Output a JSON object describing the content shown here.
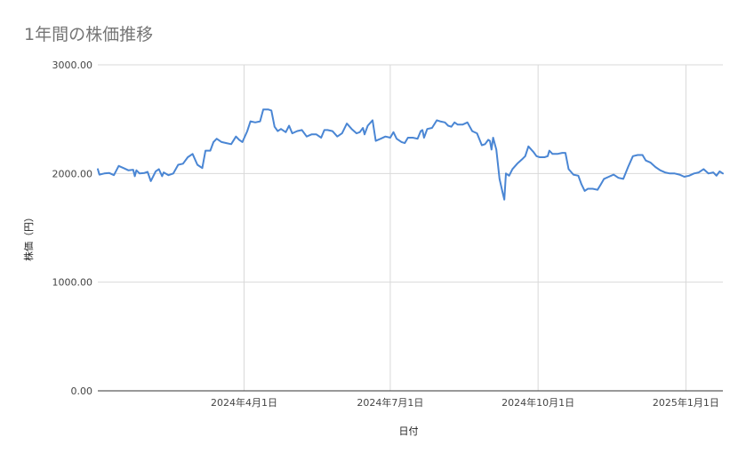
{
  "chart_data": {
    "type": "line",
    "title": "1年間の株価推移",
    "xlabel": "日付",
    "ylabel": "株価（円）",
    "ylim": [
      0,
      3000
    ],
    "yticks": [
      {
        "value": 0,
        "label": "0.00"
      },
      {
        "value": 1000,
        "label": "1000.00"
      },
      {
        "value": 2000,
        "label": "2000.00"
      },
      {
        "value": 3000,
        "label": "3000.00"
      }
    ],
    "xrange": [
      "2024-01-01",
      "2025-01-24"
    ],
    "xticks": [
      {
        "date": "2024-04-01",
        "label": "2024年4月1日"
      },
      {
        "date": "2024-07-01",
        "label": "2024年7月1日"
      },
      {
        "date": "2024-10-01",
        "label": "2024年10月1日"
      },
      {
        "date": "2025-01-01",
        "label": "2025年1月1日"
      }
    ],
    "grid": true,
    "legend": "none",
    "series": [
      {
        "color": "#4a86d4",
        "points": [
          [
            "2024-01-01",
            2040
          ],
          [
            "2024-01-02",
            1990
          ],
          [
            "2024-01-05",
            2000
          ],
          [
            "2024-01-08",
            2005
          ],
          [
            "2024-01-11",
            1985
          ],
          [
            "2024-01-14",
            2070
          ],
          [
            "2024-01-17",
            2050
          ],
          [
            "2024-01-20",
            2030
          ],
          [
            "2024-01-23",
            2035
          ],
          [
            "2024-01-24",
            1975
          ],
          [
            "2024-01-25",
            2030
          ],
          [
            "2024-01-27",
            2000
          ],
          [
            "2024-01-30",
            2005
          ],
          [
            "2024-02-01",
            2015
          ],
          [
            "2024-02-03",
            1930
          ],
          [
            "2024-02-06",
            2020
          ],
          [
            "2024-02-08",
            2040
          ],
          [
            "2024-02-10",
            1975
          ],
          [
            "2024-02-11",
            2010
          ],
          [
            "2024-02-14",
            1985
          ],
          [
            "2024-02-17",
            2000
          ],
          [
            "2024-02-20",
            2080
          ],
          [
            "2024-02-23",
            2090
          ],
          [
            "2024-02-26",
            2150
          ],
          [
            "2024-02-29",
            2180
          ],
          [
            "2024-03-03",
            2080
          ],
          [
            "2024-03-05",
            2060
          ],
          [
            "2024-03-06",
            2050
          ],
          [
            "2024-03-08",
            2210
          ],
          [
            "2024-03-11",
            2210
          ],
          [
            "2024-03-13",
            2290
          ],
          [
            "2024-03-15",
            2320
          ],
          [
            "2024-03-18",
            2290
          ],
          [
            "2024-03-21",
            2280
          ],
          [
            "2024-03-24",
            2270
          ],
          [
            "2024-03-27",
            2340
          ],
          [
            "2024-03-29",
            2310
          ],
          [
            "2024-03-31",
            2290
          ],
          [
            "2024-04-03",
            2390
          ],
          [
            "2024-04-05",
            2480
          ],
          [
            "2024-04-08",
            2470
          ],
          [
            "2024-04-11",
            2480
          ],
          [
            "2024-04-13",
            2590
          ],
          [
            "2024-04-16",
            2590
          ],
          [
            "2024-04-18",
            2580
          ],
          [
            "2024-04-20",
            2430
          ],
          [
            "2024-04-22",
            2390
          ],
          [
            "2024-04-24",
            2410
          ],
          [
            "2024-04-27",
            2380
          ],
          [
            "2024-04-29",
            2440
          ],
          [
            "2024-05-01",
            2370
          ],
          [
            "2024-05-04",
            2390
          ],
          [
            "2024-05-07",
            2400
          ],
          [
            "2024-05-10",
            2340
          ],
          [
            "2024-05-13",
            2360
          ],
          [
            "2024-05-16",
            2360
          ],
          [
            "2024-05-19",
            2330
          ],
          [
            "2024-05-21",
            2400
          ],
          [
            "2024-05-23",
            2400
          ],
          [
            "2024-05-26",
            2390
          ],
          [
            "2024-05-29",
            2340
          ],
          [
            "2024-06-01",
            2370
          ],
          [
            "2024-06-04",
            2460
          ],
          [
            "2024-06-07",
            2410
          ],
          [
            "2024-06-10",
            2370
          ],
          [
            "2024-06-12",
            2380
          ],
          [
            "2024-06-14",
            2420
          ],
          [
            "2024-06-15",
            2360
          ],
          [
            "2024-06-17",
            2440
          ],
          [
            "2024-06-20",
            2490
          ],
          [
            "2024-06-22",
            2300
          ],
          [
            "2024-06-25",
            2320
          ],
          [
            "2024-06-28",
            2340
          ],
          [
            "2024-07-01",
            2330
          ],
          [
            "2024-07-03",
            2380
          ],
          [
            "2024-07-05",
            2320
          ],
          [
            "2024-07-08",
            2290
          ],
          [
            "2024-07-10",
            2280
          ],
          [
            "2024-07-12",
            2330
          ],
          [
            "2024-07-15",
            2330
          ],
          [
            "2024-07-18",
            2320
          ],
          [
            "2024-07-20",
            2390
          ],
          [
            "2024-07-21",
            2400
          ],
          [
            "2024-07-22",
            2330
          ],
          [
            "2024-07-24",
            2410
          ],
          [
            "2024-07-27",
            2420
          ],
          [
            "2024-07-30",
            2490
          ],
          [
            "2024-08-01",
            2480
          ],
          [
            "2024-08-04",
            2470
          ],
          [
            "2024-08-06",
            2440
          ],
          [
            "2024-08-08",
            2430
          ],
          [
            "2024-08-10",
            2470
          ],
          [
            "2024-08-12",
            2450
          ],
          [
            "2024-08-15",
            2450
          ],
          [
            "2024-08-18",
            2470
          ],
          [
            "2024-08-21",
            2390
          ],
          [
            "2024-08-24",
            2370
          ],
          [
            "2024-08-27",
            2260
          ],
          [
            "2024-08-29",
            2270
          ],
          [
            "2024-08-31",
            2310
          ],
          [
            "2024-09-01",
            2300
          ],
          [
            "2024-09-02",
            2220
          ],
          [
            "2024-09-03",
            2330
          ],
          [
            "2024-09-05",
            2220
          ],
          [
            "2024-09-07",
            1950
          ],
          [
            "2024-09-09",
            1820
          ],
          [
            "2024-09-10",
            1760
          ],
          [
            "2024-09-11",
            2000
          ],
          [
            "2024-09-13",
            1980
          ],
          [
            "2024-09-15",
            2040
          ],
          [
            "2024-09-18",
            2090
          ],
          [
            "2024-09-21",
            2130
          ],
          [
            "2024-09-23",
            2160
          ],
          [
            "2024-09-25",
            2250
          ],
          [
            "2024-09-28",
            2200
          ],
          [
            "2024-09-30",
            2160
          ],
          [
            "2024-10-02",
            2150
          ],
          [
            "2024-10-05",
            2150
          ],
          [
            "2024-10-07",
            2160
          ],
          [
            "2024-10-08",
            2210
          ],
          [
            "2024-10-10",
            2180
          ],
          [
            "2024-10-13",
            2180
          ],
          [
            "2024-10-16",
            2190
          ],
          [
            "2024-10-18",
            2190
          ],
          [
            "2024-10-20",
            2040
          ],
          [
            "2024-10-23",
            1990
          ],
          [
            "2024-10-26",
            1980
          ],
          [
            "2024-10-28",
            1900
          ],
          [
            "2024-10-30",
            1840
          ],
          [
            "2024-11-01",
            1860
          ],
          [
            "2024-11-04",
            1860
          ],
          [
            "2024-11-07",
            1850
          ],
          [
            "2024-11-09",
            1900
          ],
          [
            "2024-11-11",
            1950
          ],
          [
            "2024-11-14",
            1970
          ],
          [
            "2024-11-17",
            1990
          ],
          [
            "2024-11-20",
            1960
          ],
          [
            "2024-11-23",
            1950
          ],
          [
            "2024-11-26",
            2060
          ],
          [
            "2024-11-29",
            2160
          ],
          [
            "2024-12-02",
            2170
          ],
          [
            "2024-12-05",
            2170
          ],
          [
            "2024-12-07",
            2120
          ],
          [
            "2024-12-10",
            2100
          ],
          [
            "2024-12-13",
            2060
          ],
          [
            "2024-12-16",
            2030
          ],
          [
            "2024-12-19",
            2010
          ],
          [
            "2024-12-22",
            2000
          ],
          [
            "2024-12-25",
            2000
          ],
          [
            "2024-12-28",
            1990
          ],
          [
            "2024-12-31",
            1970
          ],
          [
            "2025-01-03",
            1980
          ],
          [
            "2025-01-06",
            2000
          ],
          [
            "2025-01-09",
            2010
          ],
          [
            "2025-01-12",
            2040
          ],
          [
            "2025-01-15",
            2000
          ],
          [
            "2025-01-18",
            2010
          ],
          [
            "2025-01-20",
            1980
          ],
          [
            "2025-01-22",
            2020
          ],
          [
            "2025-01-24",
            2000
          ]
        ]
      }
    ]
  }
}
